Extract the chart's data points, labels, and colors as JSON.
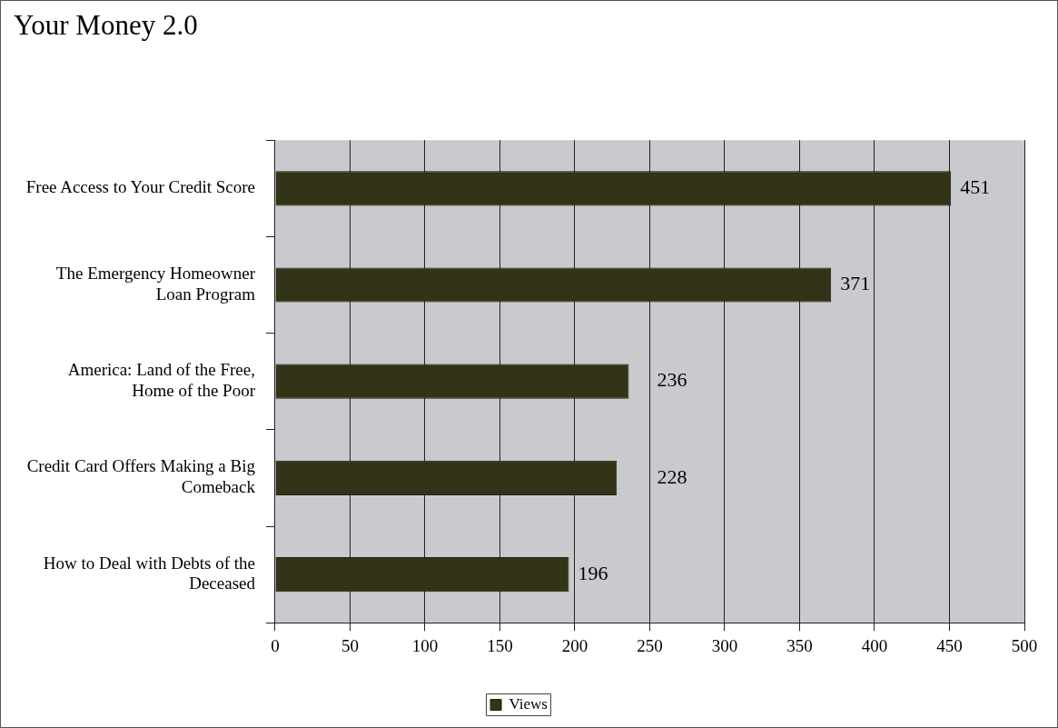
{
  "chart_data": {
    "type": "bar",
    "orientation": "horizontal",
    "title": "Your Money 2.0",
    "categories": [
      "Free Access to Your Credit Score",
      "The Emergency Homeowner Loan Program",
      "America: Land of the Free, Home of the Poor",
      "Credit Card Offers Making a Big Comeback",
      "How to Deal with Debts of the Deceased"
    ],
    "series": [
      {
        "name": "Views",
        "color": "#333318",
        "values": [
          451,
          371,
          236,
          228,
          196
        ]
      }
    ],
    "xlim": [
      0,
      500
    ],
    "xticks": [
      0,
      50,
      100,
      150,
      200,
      250,
      300,
      350,
      400,
      450,
      500
    ],
    "grid": "x",
    "legend": "bottom",
    "data_labels": true
  }
}
